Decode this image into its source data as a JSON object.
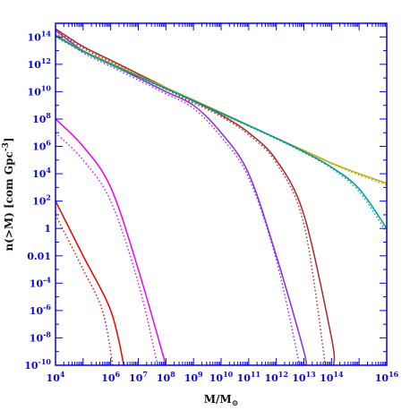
{
  "chart_data": {
    "type": "line",
    "title": "",
    "xlabel": "M/M",
    "xlabel_sub": "⊙",
    "ylabel": "n(>M) [com Gpc",
    "ylabel_sup": "-3",
    "ylabel_close": "]",
    "xscale": "log",
    "yscale": "log",
    "xlim": [
      10000,
      1e+16
    ],
    "ylim": [
      1e-10,
      1000000000000000.0
    ],
    "grid": false,
    "legend": "none",
    "axis_color": "#0000ff",
    "tick_label_color": "#0a0ad8",
    "x_ticks": [
      {
        "value": 10000.0,
        "base": "10",
        "exp": "4"
      },
      {
        "value": 1000000.0,
        "base": "10",
        "exp": "6"
      },
      {
        "value": 10000000.0,
        "base": "10",
        "exp": "7"
      },
      {
        "value": 100000000.0,
        "base": "10",
        "exp": "8"
      },
      {
        "value": 1000000000.0,
        "base": "10",
        "exp": "9"
      },
      {
        "value": 10000000000.0,
        "base": "10",
        "exp": "10"
      },
      {
        "value": 100000000000.0,
        "base": "10",
        "exp": "11"
      },
      {
        "value": 1000000000000.0,
        "base": "10",
        "exp": "12"
      },
      {
        "value": 10000000000000.0,
        "base": "10",
        "exp": "13"
      },
      {
        "value": 100000000000000.0,
        "base": "10",
        "exp": "14"
      },
      {
        "value": 1e+16,
        "base": "10",
        "exp": "16"
      }
    ],
    "y_ticks": [
      {
        "value": 100000000000000.0,
        "base": "10",
        "exp": "14"
      },
      {
        "value": 1000000000000.0,
        "base": "10",
        "exp": "12"
      },
      {
        "value": 10000000000.0,
        "base": "10",
        "exp": "10"
      },
      {
        "value": 100000000.0,
        "base": "10",
        "exp": "8"
      },
      {
        "value": 1000000.0,
        "base": "10",
        "exp": "6"
      },
      {
        "value": 10000.0,
        "base": "10",
        "exp": "4"
      },
      {
        "value": 100.0,
        "base": "10",
        "exp": "2"
      },
      {
        "value": 1,
        "base": "1",
        "exp": ""
      },
      {
        "value": 0.01,
        "base": "0.01",
        "exp": ""
      },
      {
        "value": 0.0001,
        "base": "10",
        "exp": "-4"
      },
      {
        "value": 1e-06,
        "base": "10",
        "exp": "-6"
      },
      {
        "value": 1e-08,
        "base": "10",
        "exp": "-8"
      },
      {
        "value": 1e-10,
        "base": "10",
        "exp": "-10"
      }
    ],
    "series": [
      {
        "color": "#ee0000",
        "style": "solid",
        "points": [
          [
            10000.0,
            100.0
          ],
          [
            100000.0,
            0.01
          ],
          [
            1000000.0,
            1e-06
          ],
          [
            3000000.0,
            1e-10
          ]
        ]
      },
      {
        "color": "#ee0000",
        "style": "dotted",
        "points": [
          [
            10000.0,
            10.0
          ],
          [
            100000.0,
            0.001
          ],
          [
            500000.0,
            1e-06
          ],
          [
            1200000.0,
            1e-10
          ]
        ]
      },
      {
        "color": "#ee00ee",
        "style": "solid",
        "points": [
          [
            10000.0,
            100000000.0
          ],
          [
            100000.0,
            1000000.0
          ],
          [
            1000000.0,
            1000.0
          ],
          [
            10000000.0,
            0.001
          ],
          [
            100000000.0,
            1e-10
          ]
        ]
      },
      {
        "color": "#ee00ee",
        "style": "dotted",
        "points": [
          [
            10000.0,
            10000000.0
          ],
          [
            100000.0,
            100000.0
          ],
          [
            1000000.0,
            100.0
          ],
          [
            10000000.0,
            0.0001
          ],
          [
            50000000.0,
            1e-10
          ]
        ]
      },
      {
        "color": "#8a2be2",
        "style": "solid",
        "points": [
          [
            10000.0,
            300000000000000.0
          ],
          [
            100000.0,
            10000000000000.0
          ],
          [
            1000000.0,
            1000000000000.0
          ],
          [
            10000000.0,
            100000000000.0
          ],
          [
            100000000.0,
            10000000000.0
          ],
          [
            1000000000.0,
            1000000000.0
          ],
          [
            10000000000.0,
            10000000.0
          ],
          [
            100000000000.0,
            10000.0
          ],
          [
            1000000000000.0,
            0.01
          ],
          [
            10000000000000.0,
            1e-09
          ],
          [
            11000000000000.0,
            1e-10
          ]
        ]
      },
      {
        "color": "#8a2be2",
        "style": "dotted",
        "points": [
          [
            10000.0,
            200000000000000.0
          ],
          [
            100000.0,
            7000000000000.0
          ],
          [
            1000000.0,
            700000000000.0
          ],
          [
            10000000.0,
            70000000000.0
          ],
          [
            100000000.0,
            7000000000.0
          ],
          [
            1000000000.0,
            600000000.0
          ],
          [
            10000000000.0,
            5000000.0
          ],
          [
            100000000000.0,
            5000.0
          ],
          [
            1000000000000.0,
            0.005
          ],
          [
            7000000000000.0,
            1e-10
          ]
        ]
      },
      {
        "color": "#a52a2a",
        "style": "solid",
        "points": [
          [
            10000.0,
            400000000000000.0
          ],
          [
            100000.0,
            20000000000000.0
          ],
          [
            1000000.0,
            2000000000000.0
          ],
          [
            10000000.0,
            200000000000.0
          ],
          [
            100000000.0,
            20000000000.0
          ],
          [
            1000000000.0,
            2000000000.0
          ],
          [
            10000000000.0,
            200000000.0
          ],
          [
            100000000000.0,
            10000000.0
          ],
          [
            1000000000000.0,
            100000.0
          ],
          [
            10000000000000.0,
            10.0
          ],
          [
            100000000000000.0,
            1e-08
          ],
          [
            120000000000000.0,
            1e-10
          ]
        ]
      },
      {
        "color": "#a52a2a",
        "style": "dotted",
        "points": [
          [
            10000.0,
            300000000000000.0
          ],
          [
            100000.0,
            15000000000000.0
          ],
          [
            1000000.0,
            1500000000000.0
          ],
          [
            10000000.0,
            150000000000.0
          ],
          [
            100000000.0,
            15000000000.0
          ],
          [
            1000000000.0,
            1500000000.0
          ],
          [
            10000000000.0,
            150000000.0
          ],
          [
            100000000000.0,
            7000000.0
          ],
          [
            1000000000000.0,
            60000.0
          ],
          [
            10000000000000.0,
            2
          ],
          [
            60000000000000.0,
            1e-10
          ]
        ]
      },
      {
        "color": "#b8a800",
        "style": "solid",
        "points": [
          [
            10000.0,
            150000000000000.0
          ],
          [
            100000.0,
            10000000000000.0
          ],
          [
            1000000.0,
            1200000000000.0
          ],
          [
            10000000.0,
            150000000000.0
          ],
          [
            100000000.0,
            20000000000.0
          ],
          [
            1000000000.0,
            2500000000.0
          ],
          [
            10000000000.0,
            300000000.0
          ],
          [
            100000000000.0,
            35000000.0
          ],
          [
            1000000000000.0,
            4000000.0
          ],
          [
            10000000000000.0,
            500000.0
          ],
          [
            100000000000000.0,
            60000.0
          ],
          [
            1000000000000000.0,
            10000.0
          ],
          [
            1e+16,
            2000.0
          ]
        ]
      },
      {
        "color": "#b8a800",
        "style": "dotted",
        "points": [
          [
            10000.0,
            120000000000000.0
          ],
          [
            100000.0,
            9000000000000.0
          ],
          [
            1000000.0,
            1000000000000.0
          ],
          [
            10000000.0,
            130000000000.0
          ],
          [
            100000000.0,
            17000000000.0
          ],
          [
            1000000000.0,
            2100000000.0
          ],
          [
            10000000000.0,
            260000000.0
          ],
          [
            100000000000.0,
            32000000.0
          ],
          [
            1000000000000.0,
            3800000.0
          ],
          [
            10000000000000.0,
            450000.0
          ],
          [
            100000000000000.0,
            55000.0
          ],
          [
            1000000000000000.0,
            8000.0
          ],
          [
            1e+16,
            1500.0
          ]
        ]
      },
      {
        "color": "#009999",
        "style": "solid",
        "points": [
          [
            10000.0,
            120000000000000.0
          ],
          [
            100000.0,
            9000000000000.0
          ],
          [
            1000000.0,
            1000000000000.0
          ],
          [
            10000000.0,
            130000000000.0
          ],
          [
            100000000.0,
            17000000000.0
          ],
          [
            1000000000.0,
            2200000000.0
          ],
          [
            10000000000.0,
            270000000.0
          ],
          [
            100000000000.0,
            33000000.0
          ],
          [
            1000000000000.0,
            4000000.0
          ],
          [
            10000000000000.0,
            400000.0
          ],
          [
            100000000000000.0,
            30000.0
          ],
          [
            1000000000000000.0,
            800.0
          ],
          [
            1e+16,
            1
          ]
        ]
      },
      {
        "color": "#009999",
        "style": "dotted",
        "points": [
          [
            10000.0,
            100000000000000.0
          ],
          [
            100000.0,
            8000000000000.0
          ],
          [
            1000000.0,
            900000000000.0
          ],
          [
            10000000.0,
            120000000000.0
          ],
          [
            100000000.0,
            15000000000.0
          ],
          [
            1000000000.0,
            2000000000.0
          ],
          [
            10000000000.0,
            240000000.0
          ],
          [
            100000000000.0,
            30000000.0
          ],
          [
            1000000000000.0,
            3500000.0
          ],
          [
            10000000000000.0,
            350000.0
          ],
          [
            100000000000000.0,
            25000.0
          ],
          [
            1000000000000000.0,
            500.0
          ],
          [
            1e+16,
            0.5
          ]
        ]
      }
    ]
  }
}
